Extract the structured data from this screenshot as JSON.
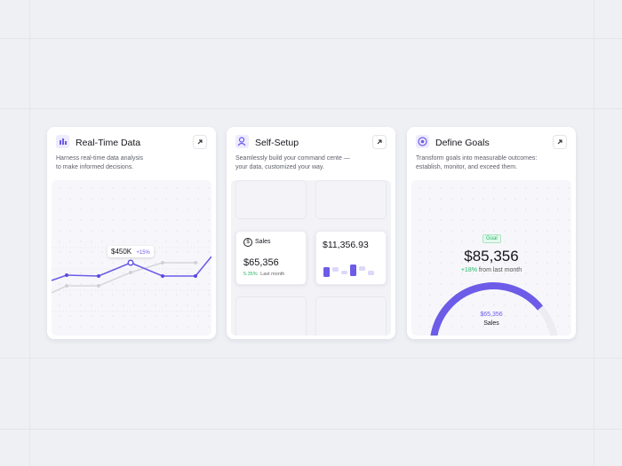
{
  "cards": [
    {
      "title": "Real-Time Data",
      "description": [
        "Harness real-time data analysis",
        "to make informed decisions."
      ],
      "tooltip": {
        "value": "$450K",
        "change": "+15%"
      }
    },
    {
      "title": "Self-Setup",
      "description": [
        "Seamlessly build your command cente —",
        "your data, customized your way."
      ],
      "sales_widget": {
        "label": "Sales",
        "value": "$65,356",
        "change": "5.35%",
        "period": "Last month"
      },
      "value_widget": {
        "value": "$11,356.93"
      }
    },
    {
      "title": "Define Goals",
      "description": [
        "Transform goals into measurable outcomes:",
        "establish, monitor, and exceed them."
      ],
      "badge": "Goal",
      "value": "$85,356",
      "change": "+18%",
      "change_text": "from last month",
      "gauge": {
        "value": "$65,356",
        "label": "Sales"
      }
    }
  ]
}
